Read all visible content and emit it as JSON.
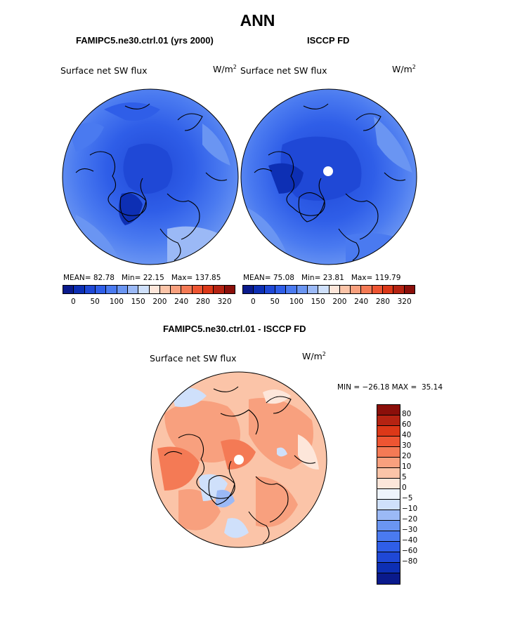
{
  "title": "ANN",
  "panels": [
    {
      "title": "FAMIPC5.ne30.ctrl.01 (yrs 2000)",
      "field": "Surface net SW flux",
      "units": "W/m",
      "units_sup": "2",
      "stats": {
        "mean_label": "MEAN=",
        "mean": "82.78",
        "min_label": "Min=",
        "min": "22.15",
        "max_label": "Max=",
        "max": "137.85"
      }
    },
    {
      "title": "ISCCP FD",
      "field": "Surface net SW flux",
      "units": "W/m",
      "units_sup": "2",
      "stats": {
        "mean_label": "MEAN=",
        "mean": "75.08",
        "min_label": "Min=",
        "min": "23.81",
        "max_label": "Max=",
        "max": "119.79"
      }
    }
  ],
  "colorbar_top": {
    "colors": [
      "#0a1a8c",
      "#0d2fb4",
      "#1f48d6",
      "#2f5ee8",
      "#4a7af0",
      "#6a95f2",
      "#9bb9f6",
      "#cfe0fb",
      "#fde6da",
      "#fbc4a8",
      "#f8a07e",
      "#f47a55",
      "#ee5532",
      "#dc3818",
      "#b52312",
      "#8b0f0a"
    ],
    "labels": [
      "0",
      "50",
      "100",
      "150",
      "200",
      "240",
      "280",
      "320"
    ]
  },
  "diff": {
    "title": "FAMIPC5.ne30.ctrl.01 - ISCCP FD",
    "field": "Surface net SW flux",
    "units": "W/m",
    "units_sup": "2",
    "min_text": "MIN = −26.18 MAX =",
    "max_value": "35.14"
  },
  "colorbar_diff": {
    "colors": [
      "#8b0f0a",
      "#b52312",
      "#dc3818",
      "#ee5532",
      "#f47a55",
      "#f8a07e",
      "#fbc4a8",
      "#fde6da",
      "#eef4fc",
      "#cfe0fb",
      "#9bb9f6",
      "#6a95f2",
      "#4a7af0",
      "#2f5ee8",
      "#1f48d6",
      "#0d2fb4",
      "#0a1a8c"
    ],
    "labels": [
      "80",
      "60",
      "40",
      "30",
      "20",
      "10",
      "5",
      "0",
      "−5",
      "−10",
      "−20",
      "−30",
      "−40",
      "−60",
      "−80"
    ]
  },
  "colors": {
    "ocean_mid": "#3f6ee6",
    "land_line": "#000000",
    "diff_base": "#f7b394"
  }
}
